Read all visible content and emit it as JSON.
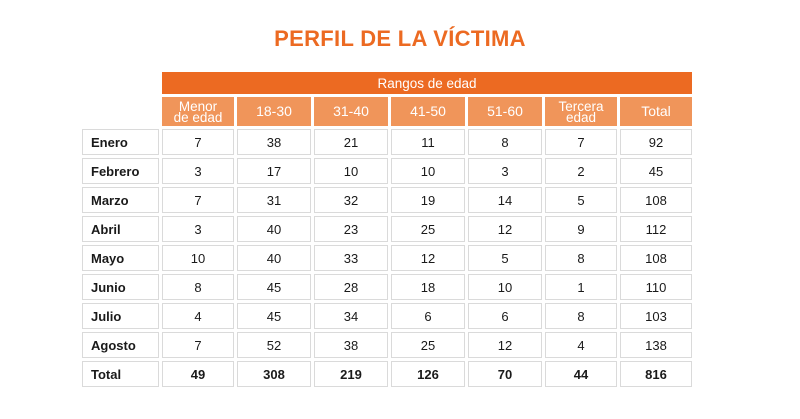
{
  "title": "PERFIL DE LA VÍCTIMA",
  "table": {
    "group_header": "Rangos de edad",
    "columns": [
      {
        "line1": "Menor",
        "line2": "de edad"
      },
      {
        "line1": "18-30",
        "line2": ""
      },
      {
        "line1": "31-40",
        "line2": ""
      },
      {
        "line1": "41-50",
        "line2": ""
      },
      {
        "line1": "51-60",
        "line2": ""
      },
      {
        "line1": "Tercera",
        "line2": "edad"
      },
      {
        "line1": "Total",
        "line2": ""
      }
    ],
    "rows": [
      {
        "label": "Enero",
        "values": [
          "7",
          "38",
          "21",
          "11",
          "8",
          "7",
          "92"
        ]
      },
      {
        "label": "Febrero",
        "values": [
          "3",
          "17",
          "10",
          "10",
          "3",
          "2",
          "45"
        ]
      },
      {
        "label": "Marzo",
        "values": [
          "7",
          "31",
          "32",
          "19",
          "14",
          "5",
          "108"
        ]
      },
      {
        "label": "Abril",
        "values": [
          "3",
          "40",
          "23",
          "25",
          "12",
          "9",
          "112"
        ]
      },
      {
        "label": "Mayo",
        "values": [
          "10",
          "40",
          "33",
          "12",
          "5",
          "8",
          "108"
        ]
      },
      {
        "label": "Junio",
        "values": [
          "8",
          "45",
          "28",
          "18",
          "10",
          "1",
          "110"
        ]
      },
      {
        "label": "Julio",
        "values": [
          "4",
          "45",
          "34",
          "6",
          "6",
          "8",
          "103"
        ]
      },
      {
        "label": "Agosto",
        "values": [
          "7",
          "52",
          "38",
          "25",
          "12",
          "4",
          "138"
        ]
      }
    ],
    "total_row": {
      "label": "Total",
      "values": [
        "49",
        "308",
        "219",
        "126",
        "70",
        "44",
        "816"
      ]
    }
  },
  "colors": {
    "accent": "#ec6a22",
    "header_light": "#f0955a",
    "cell_border": "#dadada"
  }
}
